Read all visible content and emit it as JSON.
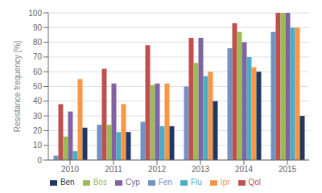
{
  "chart_data": {
    "type": "bar",
    "categories": [
      "2010",
      "2011",
      "2012",
      "2013",
      "2014",
      "2015"
    ],
    "series": [
      {
        "name": "Fen",
        "color": "#7093c4",
        "values": [
          3,
          24,
          26,
          50,
          76,
          87
        ]
      },
      {
        "name": "Qol",
        "color": "#c0504d",
        "values": [
          38,
          62,
          78,
          83,
          93,
          100
        ]
      },
      {
        "name": "Bos",
        "color": "#9bbb59",
        "values": [
          16,
          24,
          51,
          66,
          87,
          100
        ]
      },
      {
        "name": "Cyp",
        "color": "#8064a2",
        "values": [
          33,
          52,
          52,
          83,
          80,
          100
        ]
      },
      {
        "name": "Flu",
        "color": "#4bacc6",
        "values": [
          6,
          19,
          23,
          57,
          70,
          90
        ]
      },
      {
        "name": "Ipr",
        "color": "#f79646",
        "values": [
          55,
          38,
          52,
          60,
          63,
          90
        ]
      },
      {
        "name": "Ben",
        "color": "#1f3864",
        "values": [
          22,
          19,
          23,
          40,
          60,
          30
        ]
      }
    ],
    "ylabel": "Resistance frequency [%]",
    "ylim": [
      0,
      100
    ],
    "yticks": [
      0,
      10,
      20,
      30,
      40,
      50,
      60,
      70,
      80,
      90,
      100
    ],
    "grid": true,
    "legend": "bottom"
  }
}
